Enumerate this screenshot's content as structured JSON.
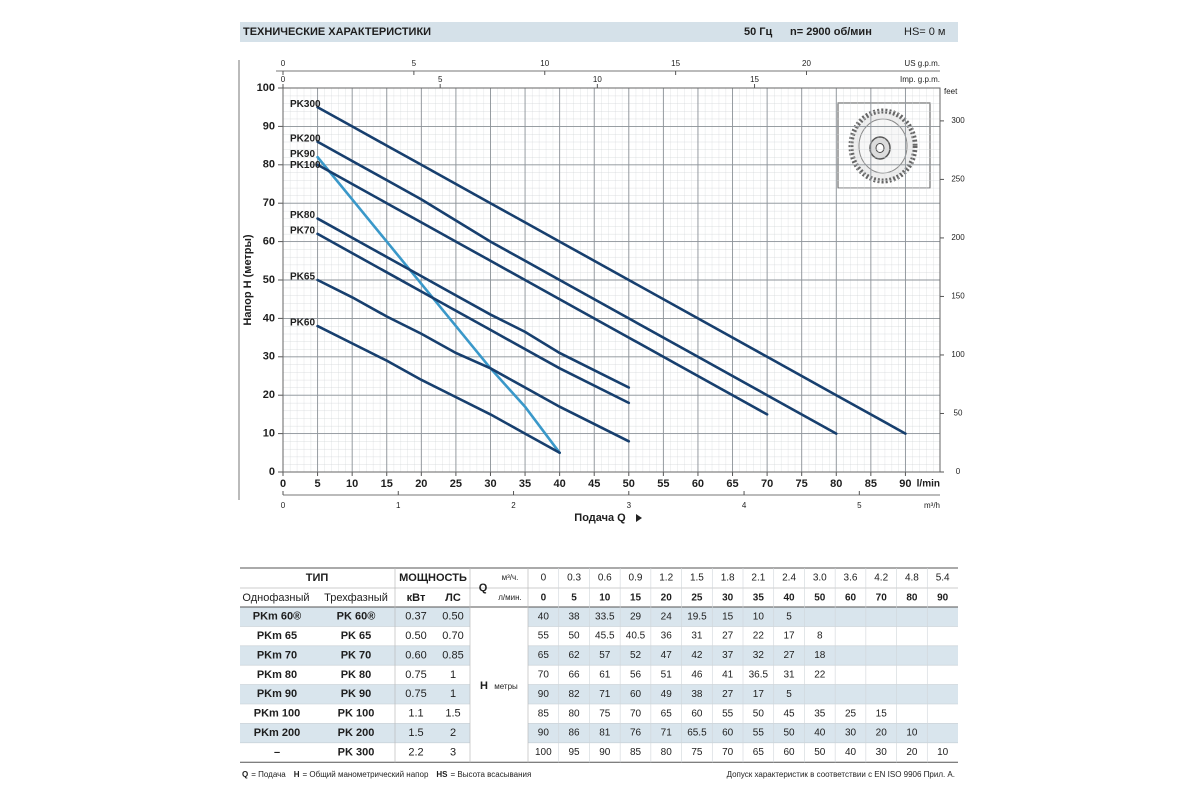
{
  "header": {
    "title": "ТЕХНИЧЕСКИЕ ХАРАКТЕРИСТИКИ",
    "frequency": "50 Гц",
    "speed": "n= 2900 об/мин",
    "suction": "HS= 0 м"
  },
  "chart_data": {
    "type": "line",
    "ylabel": "Напор H (метры)",
    "xlabel": "Подача Q",
    "xunit": "l/min",
    "xlim": [
      0,
      95
    ],
    "xticks": [
      0,
      5,
      10,
      15,
      20,
      25,
      30,
      35,
      40,
      45,
      50,
      55,
      60,
      65,
      70,
      75,
      80,
      85,
      90
    ],
    "ylim": [
      0,
      100
    ],
    "yticks": [
      0,
      10,
      20,
      30,
      40,
      50,
      60,
      70,
      80,
      90,
      100
    ],
    "y2label": "feet",
    "y2lim": [
      0,
      328.1
    ],
    "y2ticks": [
      0,
      50,
      100,
      150,
      200,
      250,
      300
    ],
    "x2label": "US g.p.m.",
    "x2lim": [
      0,
      25.1
    ],
    "x2ticks": [
      0,
      5,
      10,
      15,
      20
    ],
    "x3label": "Imp. g.p.m.",
    "x3lim": [
      0,
      20.9
    ],
    "x3ticks": [
      0,
      5,
      10,
      15
    ],
    "x4label": "m³/h",
    "x4lim": [
      0,
      5.7
    ],
    "x4ticks": [
      0,
      1,
      2,
      3,
      4,
      5
    ],
    "grid": true,
    "series": [
      {
        "name": "PK300",
        "color": "#173f6e",
        "x": [
          5,
          10,
          15,
          20,
          25,
          30,
          35,
          40,
          50,
          60,
          70,
          80,
          90
        ],
        "values": [
          95,
          90,
          85,
          80,
          75,
          70,
          65,
          60,
          50,
          40,
          30,
          20,
          10
        ]
      },
      {
        "name": "PK200",
        "color": "#173f6e",
        "x": [
          5,
          10,
          15,
          20,
          25,
          30,
          35,
          40,
          50,
          60,
          70,
          80
        ],
        "values": [
          86,
          81,
          76,
          71,
          65.5,
          60,
          55,
          50,
          40,
          30,
          20,
          10
        ]
      },
      {
        "name": "PK90",
        "color": "#3a98c9",
        "x": [
          5,
          10,
          15,
          20,
          25,
          30,
          35,
          40
        ],
        "values": [
          82,
          71,
          60,
          49,
          38,
          27,
          17,
          5
        ]
      },
      {
        "name": "PK100",
        "color": "#173f6e",
        "x": [
          5,
          10,
          15,
          20,
          25,
          30,
          35,
          40,
          50,
          60,
          70
        ],
        "values": [
          80,
          75,
          70,
          65,
          60,
          55,
          50,
          45,
          35,
          25,
          15
        ]
      },
      {
        "name": "PK80",
        "color": "#173f6e",
        "x": [
          5,
          10,
          15,
          20,
          25,
          30,
          35,
          40,
          50
        ],
        "values": [
          66,
          61,
          56,
          51,
          46,
          41,
          36.5,
          31,
          22
        ]
      },
      {
        "name": "PK70",
        "color": "#173f6e",
        "x": [
          5,
          10,
          15,
          20,
          25,
          30,
          35,
          40,
          50
        ],
        "values": [
          62,
          57,
          52,
          47,
          42,
          37,
          32,
          27,
          18
        ]
      },
      {
        "name": "PK65",
        "color": "#173f6e",
        "x": [
          5,
          10,
          15,
          20,
          25,
          30,
          35,
          40,
          50
        ],
        "values": [
          50,
          45.5,
          40.5,
          36,
          31,
          27,
          22,
          17,
          8
        ]
      },
      {
        "name": "PK60",
        "color": "#173f6e",
        "x": [
          5,
          10,
          15,
          20,
          25,
          30,
          35,
          40
        ],
        "values": [
          38,
          33.5,
          29,
          24,
          19.5,
          15,
          10,
          5
        ]
      }
    ]
  },
  "table": {
    "type": "ТИП",
    "power": "МОЩНОСТЬ",
    "q": "Q",
    "m3h_unit": "м³/ч.",
    "lmin_unit": "л/мин.",
    "single_phase": "Однофазный",
    "three_phase": "Трехфазный",
    "kw": "кВт",
    "hp": "ЛС",
    "h": "H",
    "h_unit": "метры",
    "q_m3h": [
      0,
      0.3,
      0.6,
      0.9,
      1.2,
      1.5,
      1.8,
      2.1,
      2.4,
      "3.0",
      3.6,
      4.2,
      4.8,
      5.4
    ],
    "q_lmin": [
      0,
      5,
      10,
      15,
      20,
      25,
      30,
      35,
      40,
      50,
      60,
      70,
      80,
      90
    ],
    "rows": [
      {
        "single": "PKm 60®",
        "three": "PK 60®",
        "kw": "0.37",
        "hp": "0.50",
        "h": [
          40,
          38,
          33.5,
          29,
          24,
          19.5,
          15,
          10,
          5
        ]
      },
      {
        "single": "PKm 65",
        "three": "PK 65",
        "kw": "0.50",
        "hp": "0.70",
        "h": [
          55,
          50,
          45.5,
          40.5,
          36,
          31,
          27,
          22,
          17,
          8
        ]
      },
      {
        "single": "PKm 70",
        "three": "PK 70",
        "kw": "0.60",
        "hp": "0.85",
        "h": [
          65,
          62,
          57,
          52,
          47,
          42,
          37,
          32,
          27,
          18
        ]
      },
      {
        "single": "PKm 80",
        "three": "PK 80",
        "kw": "0.75",
        "hp": "1",
        "h": [
          70,
          66,
          61,
          56,
          51,
          46,
          41,
          36.5,
          31,
          22
        ]
      },
      {
        "single": "PKm 90",
        "three": "PK 90",
        "kw": "0.75",
        "hp": "1",
        "h": [
          90,
          82,
          71,
          60,
          49,
          38,
          27,
          17,
          5
        ]
      },
      {
        "single": "PKm 100",
        "three": "PK 100",
        "kw": "1.1",
        "hp": "1.5",
        "h": [
          85,
          80,
          75,
          70,
          65,
          60,
          55,
          50,
          45,
          35,
          25,
          15
        ]
      },
      {
        "single": "PKm 200",
        "three": "PK 200",
        "kw": "1.5",
        "hp": "2",
        "h": [
          90,
          86,
          81,
          76,
          71,
          65.5,
          60,
          55,
          50,
          40,
          30,
          20,
          10
        ]
      },
      {
        "single": "–",
        "three": "PK 300",
        "kw": "2.2",
        "hp": "3",
        "h": [
          100,
          95,
          90,
          85,
          80,
          75,
          70,
          65,
          60,
          50,
          40,
          30,
          20,
          10
        ]
      }
    ]
  },
  "footer": {
    "legend": [
      {
        "symbol": "Q",
        "text": "= Подача"
      },
      {
        "symbol": "H",
        "text": "= Общий манометрический напор"
      },
      {
        "symbol": "HS",
        "text": "= Высота всасывания"
      }
    ],
    "note": "Допуск характеристик в соответствии с EN ISO 9906 Прил. А."
  }
}
